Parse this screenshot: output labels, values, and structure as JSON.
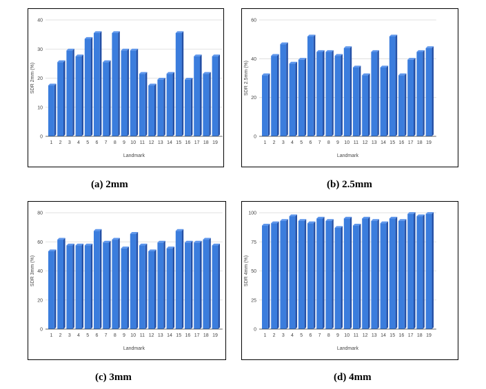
{
  "colors": {
    "bar": "#3b7ddd",
    "bar_top": "#5f97ec",
    "bar_side": "#2450a6",
    "grid": "#d9d9d9",
    "axis": "#333333",
    "text": "#444444"
  },
  "chart_data": [
    {
      "type": "bar",
      "caption": "(a)  2mm",
      "ylabel": "SDR 2mm (%)",
      "xlabel": "Landmark",
      "ylim": [
        0,
        40
      ],
      "yticks": [
        "0",
        "10",
        "20",
        "30",
        "40"
      ],
      "categories": [
        "1",
        "2",
        "3",
        "4",
        "5",
        "6",
        "7",
        "8",
        "9",
        "10",
        "11",
        "12",
        "13",
        "14",
        "15",
        "16",
        "17",
        "18",
        "19"
      ],
      "values": [
        17.5,
        25.5,
        29.5,
        27.5,
        33.5,
        35.5,
        25.5,
        35.5,
        29.5,
        29.5,
        21.5,
        17.5,
        19.5,
        21.5,
        35.5,
        19.5,
        27.5,
        21.5,
        27.5
      ]
    },
    {
      "type": "bar",
      "caption": "(b)  2.5mm",
      "ylabel": "SDR 2.5mm (%)",
      "xlabel": "Landmark",
      "ylim": [
        0,
        60
      ],
      "yticks": [
        "0",
        "20",
        "40",
        "60"
      ],
      "categories": [
        "1",
        "2",
        "3",
        "4",
        "5",
        "6",
        "7",
        "8",
        "9",
        "10",
        "11",
        "12",
        "13",
        "14",
        "15",
        "16",
        "17",
        "18",
        "19"
      ],
      "values": [
        31.5,
        41.5,
        47.5,
        37.5,
        39.5,
        51.5,
        43.5,
        43.5,
        41.5,
        45.5,
        35.5,
        31.5,
        43.5,
        35.5,
        51.5,
        31.5,
        39.5,
        43.5,
        45.5
      ]
    },
    {
      "type": "bar",
      "caption": "(c)  3mm",
      "ylabel": "SDR 3mm (%)",
      "xlabel": "Landmark",
      "ylim": [
        0,
        80
      ],
      "yticks": [
        "0",
        "20",
        "40",
        "60",
        "80"
      ],
      "categories": [
        "1",
        "2",
        "3",
        "4",
        "5",
        "6",
        "7",
        "8",
        "9",
        "10",
        "11",
        "12",
        "13",
        "14",
        "15",
        "16",
        "17",
        "18",
        "19"
      ],
      "values": [
        53.5,
        61.5,
        57.5,
        57.5,
        57.5,
        67.5,
        59.5,
        61.5,
        55.5,
        65.5,
        57.5,
        53.5,
        59.5,
        55.5,
        67.5,
        59.5,
        59.5,
        61.5,
        57.5
      ]
    },
    {
      "type": "bar",
      "caption": "(d)  4mm",
      "ylabel": "SDR 4mm (%)",
      "xlabel": "Landmark",
      "ylim": [
        0,
        100
      ],
      "yticks": [
        "0",
        "25",
        "50",
        "75",
        "100"
      ],
      "categories": [
        "1",
        "2",
        "3",
        "4",
        "5",
        "6",
        "7",
        "8",
        "9",
        "10",
        "11",
        "12",
        "13",
        "14",
        "15",
        "16",
        "17",
        "18",
        "19"
      ],
      "values": [
        89,
        91,
        93,
        97,
        93,
        91,
        95,
        93,
        87,
        95,
        89,
        95,
        93,
        91,
        95,
        93,
        99,
        97,
        99
      ]
    }
  ]
}
